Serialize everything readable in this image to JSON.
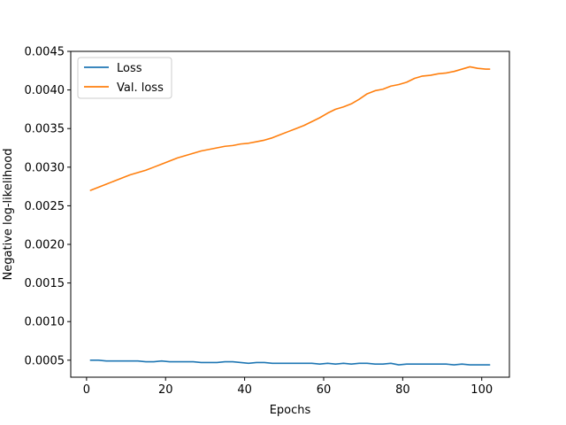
{
  "chart_data": {
    "type": "line",
    "xlabel": "Epochs",
    "ylabel": "Negative log-likelihood",
    "xlim": [
      -4,
      107
    ],
    "ylim": [
      0.00028,
      0.0045
    ],
    "xticks": [
      0,
      20,
      40,
      60,
      80,
      100
    ],
    "yticks": [
      0.0005,
      0.001,
      0.0015,
      0.002,
      0.0025,
      0.003,
      0.0035,
      0.004,
      0.0045
    ],
    "ytick_labels": [
      "0.0005",
      "0.0010",
      "0.0015",
      "0.0020",
      "0.0025",
      "0.0030",
      "0.0035",
      "0.0040",
      "0.0045"
    ],
    "grid": false,
    "legend_position": "top-left",
    "series": [
      {
        "name": "Loss",
        "color": "#1f77b4",
        "x": [
          1,
          3,
          5,
          7,
          9,
          11,
          13,
          15,
          17,
          19,
          21,
          23,
          25,
          27,
          29,
          31,
          33,
          35,
          37,
          39,
          41,
          43,
          45,
          47,
          49,
          51,
          53,
          55,
          57,
          59,
          61,
          63,
          65,
          67,
          69,
          71,
          73,
          75,
          77,
          79,
          81,
          83,
          85,
          87,
          89,
          91,
          93,
          95,
          97,
          99,
          101,
          102
        ],
        "y": [
          0.0005,
          0.0005,
          0.00049,
          0.00049,
          0.00049,
          0.00049,
          0.00049,
          0.00048,
          0.00048,
          0.00049,
          0.00048,
          0.00048,
          0.00048,
          0.00048,
          0.00047,
          0.00047,
          0.00047,
          0.00048,
          0.00048,
          0.00047,
          0.00046,
          0.00047,
          0.00047,
          0.00046,
          0.00046,
          0.00046,
          0.00046,
          0.00046,
          0.00046,
          0.00045,
          0.00046,
          0.00045,
          0.00046,
          0.00045,
          0.00046,
          0.00046,
          0.00045,
          0.00045,
          0.00046,
          0.00044,
          0.00045,
          0.00045,
          0.00045,
          0.00045,
          0.00045,
          0.00045,
          0.00044,
          0.00045,
          0.00044,
          0.00044,
          0.00044,
          0.00044
        ]
      },
      {
        "name": "Val. loss",
        "color": "#ff7f0e",
        "x": [
          1,
          3,
          5,
          7,
          9,
          11,
          13,
          15,
          17,
          19,
          21,
          23,
          25,
          27,
          29,
          31,
          33,
          35,
          37,
          39,
          41,
          43,
          45,
          47,
          49,
          51,
          53,
          55,
          57,
          59,
          61,
          63,
          65,
          67,
          69,
          71,
          73,
          75,
          77,
          79,
          81,
          83,
          85,
          87,
          89,
          91,
          93,
          95,
          97,
          99,
          101,
          102
        ],
        "y": [
          0.0027,
          0.00274,
          0.00278,
          0.00282,
          0.00286,
          0.0029,
          0.00293,
          0.00296,
          0.003,
          0.00304,
          0.00308,
          0.00312,
          0.00315,
          0.00318,
          0.00321,
          0.00323,
          0.00325,
          0.00327,
          0.00328,
          0.0033,
          0.00331,
          0.00333,
          0.00335,
          0.00338,
          0.00342,
          0.00346,
          0.0035,
          0.00354,
          0.00359,
          0.00364,
          0.0037,
          0.00375,
          0.00378,
          0.00382,
          0.00388,
          0.00395,
          0.00399,
          0.00401,
          0.00405,
          0.00407,
          0.0041,
          0.00415,
          0.00418,
          0.00419,
          0.00421,
          0.00422,
          0.00424,
          0.00427,
          0.0043,
          0.00428,
          0.00427,
          0.00427
        ]
      }
    ]
  }
}
